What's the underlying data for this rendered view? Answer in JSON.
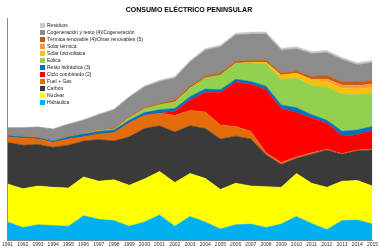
{
  "chart_data": {
    "type": "area",
    "title": "CONSUMO ELÉCTRICO PENINSULAR",
    "stacked": true,
    "grid": false,
    "tick_labels": "x",
    "legend": "top-left",
    "categories": [
      "1991",
      "1992",
      "1993",
      "1994",
      "1995",
      "1996",
      "1997",
      "1998",
      "1999",
      "2000",
      "2001",
      "2002",
      "2003",
      "2004",
      "2005",
      "2006",
      "2007",
      "2008",
      "2009",
      "2010",
      "2011",
      "2012",
      "2013",
      "2014",
      "2015"
    ],
    "ylim": [
      0,
      320000
    ],
    "series": [
      {
        "name": "Hidráulica",
        "color": "#00b0f0",
        "values": [
          26000,
          18000,
          22000,
          21000,
          20000,
          35000,
          30000,
          28000,
          20000,
          26000,
          36000,
          20000,
          34000,
          26000,
          16000,
          22000,
          23000,
          18000,
          23000,
          34000,
          24000,
          15000,
          28000,
          29000,
          23000
        ]
      },
      {
        "name": "Nuclear",
        "color": "#ffff00",
        "values": [
          55000,
          56000,
          56000,
          55000,
          55000,
          56000,
          55000,
          59000,
          59000,
          62000,
          63000,
          63000,
          62000,
          63000,
          57000,
          60000,
          55000,
          59000,
          53000,
          62000,
          58000,
          61000,
          57000,
          57000,
          55000
        ]
      },
      {
        "name": "Carbón",
        "color": "#3a3a3a",
        "values": [
          60000,
          63000,
          60000,
          58000,
          62000,
          52000,
          60000,
          56000,
          70000,
          73000,
          66000,
          73000,
          69000,
          72000,
          73000,
          68000,
          68000,
          46000,
          33000,
          22000,
          42000,
          54000,
          39000,
          43000,
          52000
        ]
      },
      {
        "name": "Fuel + Gas",
        "color": "#e46c0a",
        "values": [
          8000,
          10000,
          8000,
          7000,
          9000,
          6000,
          8000,
          12000,
          20000,
          19000,
          18000,
          24000,
          22000,
          24000,
          20000,
          14000,
          11000,
          3000,
          3000,
          2000,
          2000,
          1000,
          1000,
          1000,
          1000
        ]
      },
      {
        "name": "Ciclo combinado (2)",
        "color": "#ff0000",
        "values": [
          0,
          0,
          0,
          0,
          0,
          0,
          0,
          0,
          0,
          0,
          0,
          6000,
          15000,
          28000,
          47000,
          64000,
          68000,
          91000,
          78000,
          64000,
          50000,
          38000,
          25000,
          22000,
          27000
        ]
      },
      {
        "name": "Resto hidráulica (3)",
        "color": "#0070c0",
        "values": [
          2000,
          2000,
          2000,
          2000,
          3000,
          4000,
          4000,
          4000,
          4000,
          4000,
          5000,
          4000,
          5000,
          5000,
          4000,
          4000,
          4000,
          5000,
          5000,
          7000,
          5000,
          4000,
          7000,
          7000,
          6000
        ]
      },
      {
        "name": "Eólica",
        "color": "#92d050",
        "values": [
          0,
          0,
          0,
          0,
          0,
          0,
          1000,
          1000,
          3000,
          5000,
          7000,
          9000,
          12000,
          16000,
          21000,
          23000,
          27000,
          32000,
          37000,
          43000,
          42000,
          48000,
          54000,
          51000,
          48000
        ]
      },
      {
        "name": "Solar fotovoltaica",
        "color": "#ffc000",
        "values": [
          0,
          0,
          0,
          0,
          0,
          0,
          0,
          0,
          0,
          0,
          0,
          0,
          0,
          0,
          0,
          0,
          500,
          2500,
          6000,
          6400,
          7400,
          8200,
          8300,
          8200,
          8200
        ]
      },
      {
        "name": "Solar térmica",
        "color": "#f79646",
        "values": [
          0,
          0,
          0,
          0,
          0,
          0,
          0,
          0,
          0,
          0,
          0,
          0,
          0,
          0,
          0,
          0,
          0,
          20,
          100,
          700,
          1800,
          3400,
          4400,
          5000,
          5100
        ]
      },
      {
        "name": "Térmica renovable (4)/Otras renovables (5)",
        "color": "#c55a11",
        "values": [
          1000,
          1000,
          1000,
          1000,
          1000,
          1000,
          1000,
          2000,
          2000,
          2000,
          2000,
          3000,
          3000,
          3000,
          3000,
          3000,
          3000,
          3000,
          3000,
          3000,
          4000,
          5000,
          5000,
          5000,
          5000
        ]
      },
      {
        "name": "Cogeneración y resto (4)/Cogeneración",
        "color": "#8c8c8c",
        "values": [
          10000,
          12000,
          14000,
          16000,
          17000,
          19000,
          22000,
          26000,
          28000,
          30000,
          32000,
          32000,
          35000,
          37000,
          38000,
          38000,
          38000,
          38000,
          33000,
          32000,
          33000,
          33000,
          32000,
          25000,
          26000
        ]
      },
      {
        "name": "Residuos",
        "color": "#c8c8c8",
        "values": [
          500,
          500,
          600,
          700,
          800,
          900,
          1000,
          1200,
          1400,
          1600,
          1800,
          2000,
          2200,
          2400,
          2500,
          2600,
          2700,
          2800,
          2800,
          2900,
          3000,
          3000,
          2900,
          2900,
          3000
        ]
      }
    ]
  }
}
